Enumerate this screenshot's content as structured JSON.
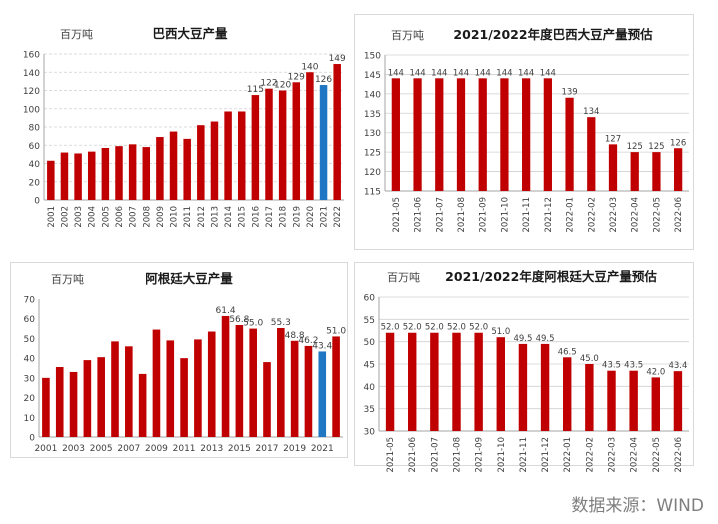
{
  "source": "数据来源：WIND",
  "colors": {
    "bar": "#c00000",
    "highlight": "#1f77c4",
    "grid": "#d9d9d9",
    "text": "#404040"
  },
  "chart_data": [
    {
      "type": "bar",
      "title": "巴西大豆产量",
      "unit": "百万吨",
      "ylim": [
        0,
        160
      ],
      "yticks": [
        0,
        20,
        40,
        60,
        80,
        100,
        120,
        140,
        160
      ],
      "grid": true,
      "categories": [
        "2001",
        "2002",
        "2003",
        "2004",
        "2005",
        "2006",
        "2007",
        "2008",
        "2009",
        "2010",
        "2011",
        "2012",
        "2013",
        "2014",
        "2015",
        "2016",
        "2017",
        "2018",
        "2019",
        "2020",
        "2021",
        "2022"
      ],
      "values": [
        43,
        52,
        51,
        53,
        57,
        59,
        61,
        58,
        69,
        75,
        67,
        82,
        86,
        97,
        97,
        115,
        122,
        120,
        129,
        140,
        126,
        149
      ],
      "labels": {
        "15": "115",
        "16": "122",
        "17": "120",
        "18": "129",
        "19": "140",
        "20": "126",
        "21": "149"
      },
      "highlight_index": 20
    },
    {
      "type": "bar",
      "title": "2021/2022年度巴西大豆产量预估",
      "unit": "百万吨",
      "ylim": [
        115,
        150
      ],
      "yticks": [
        115,
        120,
        125,
        130,
        135,
        140,
        145,
        150
      ],
      "grid": true,
      "categories": [
        "2021-05",
        "2021-06",
        "2021-07",
        "2021-08",
        "2021-09",
        "2021-10",
        "2021-11",
        "2021-12",
        "2022-01",
        "2022-02",
        "2022-03",
        "2022-04",
        "2022-05",
        "2022-06"
      ],
      "values": [
        144,
        144,
        144,
        144,
        144,
        144,
        144,
        144,
        139,
        134,
        127,
        125,
        125,
        126
      ],
      "labels": {
        "0": "144",
        "1": "144",
        "2": "144",
        "3": "144",
        "4": "144",
        "5": "144",
        "6": "144",
        "7": "144",
        "8": "139",
        "9": "134",
        "10": "127",
        "11": "125",
        "12": "125",
        "13": "126"
      }
    },
    {
      "type": "bar",
      "title": "阿根廷大豆产量",
      "unit": "百万吨",
      "ylim": [
        0,
        70
      ],
      "yticks": [
        0,
        10,
        20,
        30,
        40,
        50,
        60,
        70
      ],
      "grid": false,
      "categories": [
        "2001",
        "2002",
        "2003",
        "2004",
        "2005",
        "2006",
        "2007",
        "2008",
        "2009",
        "2010",
        "2011",
        "2012",
        "2013",
        "2014",
        "2015",
        "2016",
        "2017",
        "2018",
        "2019",
        "2020",
        "2021",
        "2022"
      ],
      "xtick_labels": [
        "2001",
        "",
        "2003",
        "",
        "2005",
        "",
        "2007",
        "",
        "2009",
        "",
        "2011",
        "",
        "2013",
        "",
        "2015",
        "",
        "2017",
        "",
        "2019",
        "",
        "2021",
        ""
      ],
      "values": [
        30,
        35.5,
        33,
        39,
        40.5,
        48.5,
        46,
        32,
        54.5,
        49,
        40,
        49.5,
        53.5,
        61.4,
        56.8,
        55.0,
        38,
        55.3,
        48.8,
        46.2,
        43.4,
        51.0
      ],
      "labels": {
        "13": "61.4",
        "14": "56.8",
        "15": "55.0",
        "17": "55.3",
        "18": "48.8",
        "19": "46.2",
        "20": "43.4",
        "21": "51.0"
      },
      "highlight_index": 20
    },
    {
      "type": "bar",
      "title": "2021/2022年度阿根廷大豆产量预估",
      "unit": "百万吨",
      "ylim": [
        30,
        60
      ],
      "yticks": [
        30,
        35,
        40,
        45,
        50,
        55,
        60
      ],
      "grid": true,
      "categories": [
        "2021-05",
        "2021-06",
        "2021-07",
        "2021-08",
        "2021-09",
        "2021-10",
        "2021-11",
        "2021-12",
        "2022-01",
        "2022-02",
        "2022-03",
        "2022-04",
        "2022-05",
        "2022-06"
      ],
      "values": [
        52.0,
        52.0,
        52.0,
        52.0,
        52.0,
        51.0,
        49.5,
        49.5,
        46.5,
        45.0,
        43.5,
        43.5,
        42.0,
        43.4
      ],
      "labels": {
        "0": "52.0",
        "1": "52.0",
        "2": "52.0",
        "3": "52.0",
        "4": "52.0",
        "5": "51.0",
        "6": "49.5",
        "7": "49.5",
        "8": "46.5",
        "9": "45.0",
        "10": "43.5",
        "11": "43.5",
        "12": "42.0",
        "13": "43.4"
      }
    }
  ]
}
